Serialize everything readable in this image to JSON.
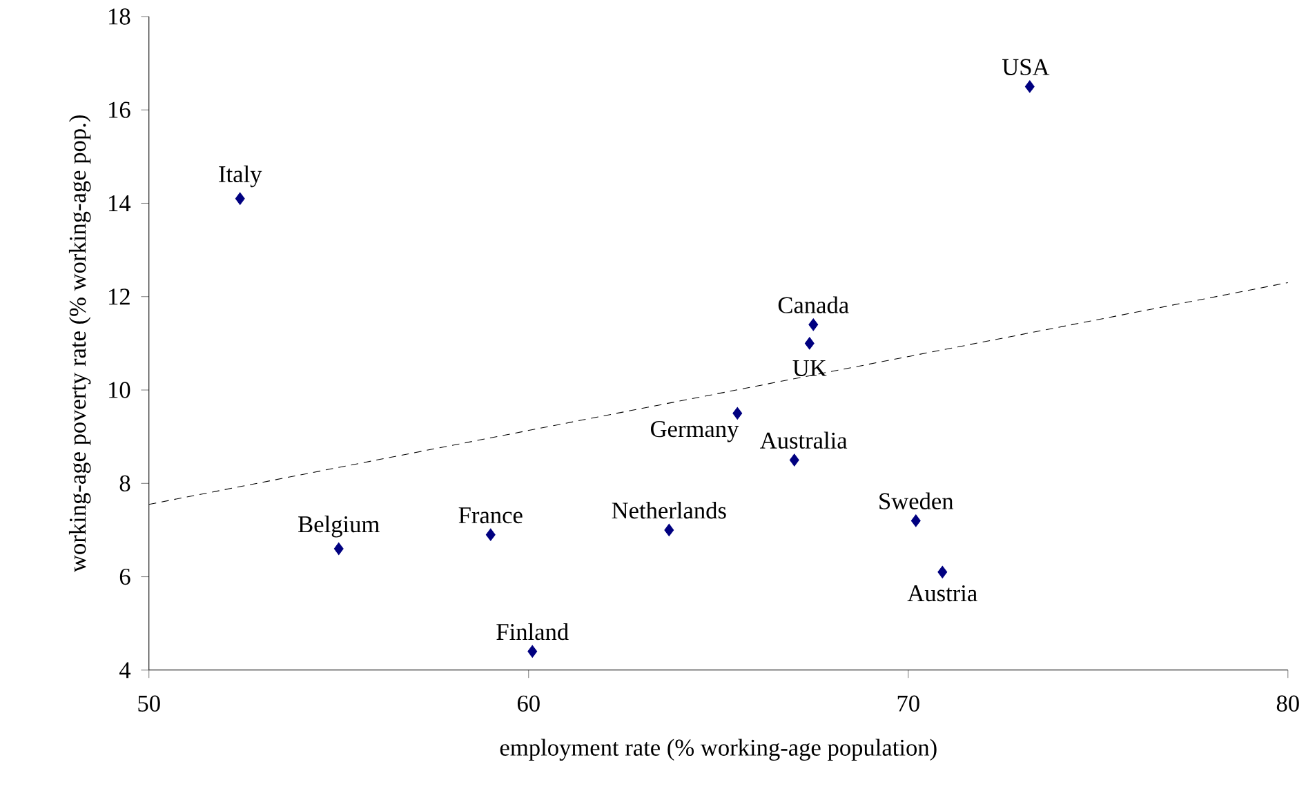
{
  "chart_data": {
    "type": "scatter",
    "xlabel": "employment rate (% working-age population)",
    "ylabel": "working-age poverty rate (% working-age pop.)",
    "xlim": [
      50,
      80
    ],
    "ylim": [
      4,
      18
    ],
    "xticks": [
      50,
      60,
      70,
      80
    ],
    "yticks": [
      4,
      6,
      8,
      10,
      12,
      14,
      16,
      18
    ],
    "grid": false,
    "series": [
      {
        "color": "#000080",
        "marker": "diamond",
        "x": [
          52.4,
          55.0,
          59.0,
          60.1,
          63.7,
          65.5,
          67.4,
          67.5,
          67.0,
          70.2,
          70.9,
          73.2
        ],
        "values": [
          14.1,
          6.6,
          6.9,
          4.4,
          7.0,
          9.5,
          11.0,
          11.4,
          8.5,
          7.2,
          6.1,
          16.5
        ]
      },
      {
        "type": "line",
        "color": "#000000",
        "marker": "none",
        "line_style": "dashed",
        "x": [
          50,
          80
        ],
        "values": [
          7.55,
          12.3
        ]
      }
    ],
    "annotations": [
      {
        "text": "Italy",
        "x": 52.4,
        "y": 14.1
      },
      {
        "text": "Belgium",
        "x": 55.0,
        "y": 6.6
      },
      {
        "text": "France",
        "x": 59.0,
        "y": 6.9
      },
      {
        "text": "Finland",
        "x": 60.1,
        "y": 4.4
      },
      {
        "text": "Netherlands",
        "x": 63.7,
        "y": 7.0
      },
      {
        "text": "Germany",
        "x": 65.5,
        "y": 9.5
      },
      {
        "text": "UK",
        "x": 67.4,
        "y": 11.0
      },
      {
        "text": "Canada",
        "x": 67.5,
        "y": 11.4
      },
      {
        "text": "Australia",
        "x": 67.0,
        "y": 8.5
      },
      {
        "text": "Sweden",
        "x": 70.2,
        "y": 7.2
      },
      {
        "text": "Austria",
        "x": 70.9,
        "y": 6.1
      },
      {
        "text": "USA",
        "x": 73.2,
        "y": 16.5
      }
    ]
  }
}
